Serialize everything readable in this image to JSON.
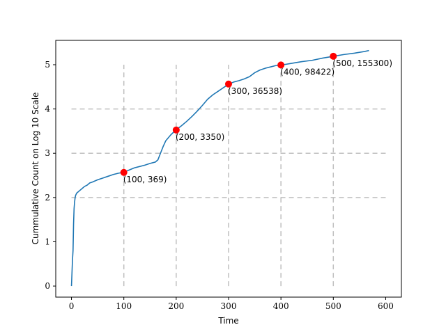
{
  "chart_data": {
    "type": "line",
    "title": "",
    "xlabel": "Time",
    "ylabel": "Cummulative Count on Log 10 Scale",
    "xlim": [
      -30,
      630
    ],
    "ylim": [
      -0.25,
      5.55
    ],
    "xticks": [
      0,
      100,
      200,
      300,
      400,
      500,
      600
    ],
    "yticks": [
      0,
      1,
      2,
      3,
      4,
      5
    ],
    "grid_hlines": [
      2,
      3,
      4
    ],
    "grid_vlines": [
      100,
      200,
      300,
      400,
      500
    ],
    "grid_vline_range": [
      0,
      5
    ],
    "grid_hline_range": [
      0,
      600
    ],
    "series": [
      {
        "color": "#1f77b4",
        "x": [
          0,
          1,
          2,
          3,
          4,
          5,
          6,
          7,
          8,
          10,
          12,
          15,
          20,
          25,
          30,
          35,
          40,
          50,
          60,
          70,
          80,
          90,
          100,
          110,
          120,
          130,
          140,
          150,
          160,
          165,
          170,
          175,
          180,
          190,
          200,
          210,
          220,
          230,
          240,
          250,
          260,
          270,
          280,
          290,
          300,
          310,
          320,
          330,
          340,
          350,
          360,
          370,
          380,
          390,
          400,
          420,
          440,
          460,
          480,
          500,
          520,
          540,
          560,
          568
        ],
        "y": [
          0,
          0.3,
          0.6,
          0.8,
          1.4,
          1.75,
          1.9,
          2.0,
          2.05,
          2.1,
          2.12,
          2.15,
          2.2,
          2.25,
          2.28,
          2.33,
          2.35,
          2.4,
          2.44,
          2.48,
          2.52,
          2.55,
          2.57,
          2.62,
          2.67,
          2.7,
          2.73,
          2.77,
          2.8,
          2.85,
          3.0,
          3.15,
          3.28,
          3.42,
          3.53,
          3.62,
          3.72,
          3.83,
          3.95,
          4.08,
          4.22,
          4.32,
          4.4,
          4.48,
          4.56,
          4.61,
          4.64,
          4.68,
          4.73,
          4.82,
          4.88,
          4.92,
          4.95,
          4.98,
          4.99,
          5.03,
          5.07,
          5.1,
          5.15,
          5.19,
          5.23,
          5.26,
          5.3,
          5.32
        ]
      }
    ],
    "markers": {
      "color": "#ff0000",
      "points": [
        {
          "x": 100,
          "y": 2.567,
          "label": "(100, 369)"
        },
        {
          "x": 200,
          "y": 3.525,
          "label": "(200, 3350)"
        },
        {
          "x": 300,
          "y": 4.563,
          "label": "(300, 36538)"
        },
        {
          "x": 400,
          "y": 4.993,
          "label": "(400, 98422)"
        },
        {
          "x": 500,
          "y": 5.191,
          "label": "(500, 155300)"
        }
      ]
    },
    "legend": "none"
  }
}
